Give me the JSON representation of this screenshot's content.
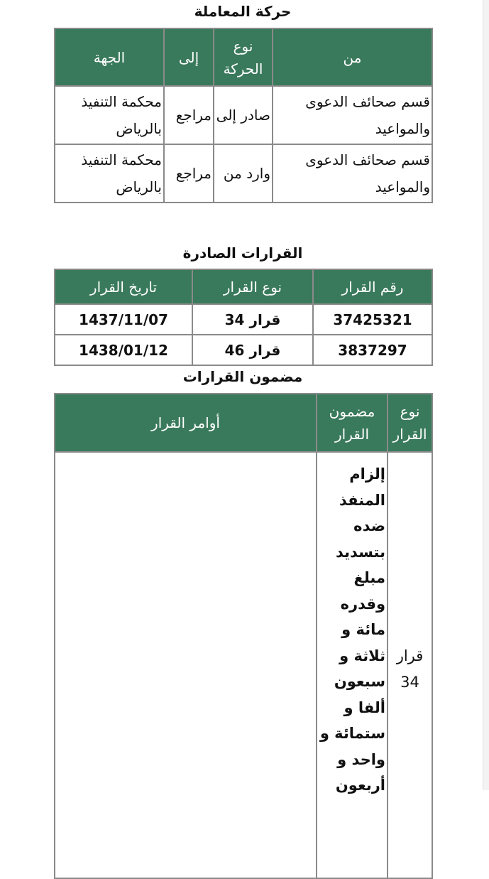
{
  "movement": {
    "title": "حركة المعاملة",
    "headers": [
      "من",
      "نوع الحركة",
      "إلى",
      "الجهة"
    ],
    "rows": [
      [
        "قسم صحائف الدعوى والمواعيد",
        "صادر إلى",
        "مراجع",
        "محكمة التنفيذ بالرياض"
      ],
      [
        "قسم صحائف الدعوى والمواعيد",
        "وارد من",
        "مراجع",
        "محكمة التنفيذ بالرياض"
      ]
    ]
  },
  "decisions": {
    "title": "القرارات الصادرة",
    "headers": [
      "رقم القرار",
      "نوع القرار",
      "تاريخ القرار"
    ],
    "rows": [
      [
        "37425321",
        "قرار 34",
        "1437/11/07"
      ],
      [
        "3837297",
        "قرار 46",
        "1438/01/12"
      ]
    ]
  },
  "contents": {
    "title": "مضمون القرارات",
    "headers": [
      "نوع القرار",
      "مضمون القرار",
      "أوامر القرار"
    ],
    "rows": [
      [
        "قرار 34",
        "إلزام المنفذ ضده بتسديد مبلغ وقدره مائة و ثلاثة و سبعون ألفا و ستمائة و واحد و أربعون",
        ""
      ]
    ]
  },
  "colors": {
    "header_bg": "#3a7a5c",
    "border": "#8a8a8a"
  }
}
